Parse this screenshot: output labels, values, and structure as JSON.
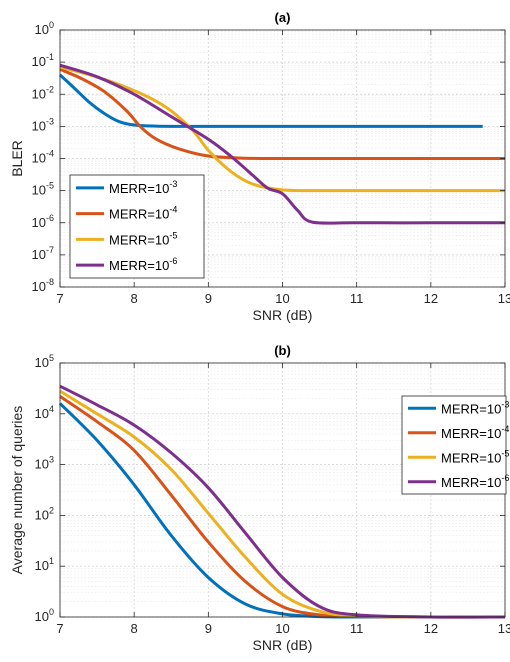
{
  "chart_data": [
    {
      "id": "a",
      "type": "line",
      "title": "(a)",
      "xlabel": "SNR (dB)",
      "ylabel": "BLER",
      "xlim": [
        7,
        13
      ],
      "ylim_exp": [
        -8,
        0
      ],
      "yscale": "log",
      "grid": true,
      "legend_position": "bottom-left",
      "x_ticks": [
        "7",
        "8",
        "9",
        "10",
        "11",
        "12",
        "13"
      ],
      "series": [
        {
          "name": "MERR=10^-3",
          "label_base": "MERR=10",
          "label_exp": "-3",
          "color": "#0072BD",
          "x": [
            7,
            7.2,
            7.4,
            7.6,
            7.8,
            8.0,
            8.3,
            8.6,
            9.0,
            10,
            11,
            12,
            12.7
          ],
          "y": [
            0.04,
            0.015,
            0.0055,
            0.0025,
            0.0014,
            0.0011,
            0.00102,
            0.001,
            0.001,
            0.001,
            0.001,
            0.001,
            0.001
          ]
        },
        {
          "name": "MERR=10^-4",
          "label_base": "MERR=10",
          "label_exp": "-4",
          "color": "#D95319",
          "x": [
            7,
            7.3,
            7.6,
            7.9,
            8.1,
            8.3,
            8.6,
            9.0,
            9.5,
            10,
            11,
            12,
            13
          ],
          "y": [
            0.06,
            0.03,
            0.012,
            0.003,
            0.0009,
            0.0004,
            0.0002,
            0.00012,
            0.000102,
            0.0001,
            0.0001,
            0.0001,
            0.0001
          ]
        },
        {
          "name": "MERR=10^-5",
          "label_base": "MERR=10",
          "label_exp": "-5",
          "color": "#EDB120",
          "x": [
            7,
            7.4,
            7.8,
            8.2,
            8.5,
            8.8,
            9.0,
            9.3,
            9.6,
            10,
            10.5,
            11,
            12,
            13
          ],
          "y": [
            0.07,
            0.04,
            0.02,
            0.008,
            0.003,
            0.0007,
            0.00018,
            4e-05,
            1.6e-05,
            1.05e-05,
            1e-05,
            1e-05,
            1e-05,
            1e-05
          ]
        },
        {
          "name": "MERR=10^-6",
          "label_base": "MERR=10",
          "label_exp": "-6",
          "color": "#7E2F8E",
          "x": [
            7,
            7.5,
            8.0,
            8.5,
            9.0,
            9.3,
            9.6,
            9.8,
            10.0,
            10.2,
            10.4,
            11,
            12,
            13
          ],
          "y": [
            0.08,
            0.035,
            0.01,
            0.002,
            0.0004,
            0.00012,
            3e-05,
            1.2e-05,
            8e-06,
            2.5e-06,
            1.05e-06,
            1e-06,
            1e-06,
            1e-06
          ]
        }
      ]
    },
    {
      "id": "b",
      "type": "line",
      "title": "(b)",
      "xlabel": "SNR (dB)",
      "ylabel": "Average number of queries",
      "xlim": [
        7,
        13
      ],
      "ylim_exp": [
        0,
        5
      ],
      "yscale": "log",
      "grid": true,
      "legend_position": "top-right",
      "x_ticks": [
        "7",
        "8",
        "9",
        "10",
        "11",
        "12",
        "13"
      ],
      "series": [
        {
          "name": "MERR=10^-3",
          "label_base": "MERR=10",
          "label_exp": "-3",
          "color": "#0072BD",
          "x": [
            7,
            7.5,
            8,
            8.5,
            9,
            9.5,
            10,
            10.5,
            11,
            12,
            13
          ],
          "y": [
            16000,
            3000,
            400,
            40,
            6,
            1.8,
            1.15,
            1.02,
            1,
            1,
            1
          ]
        },
        {
          "name": "MERR=10^-4",
          "label_base": "MERR=10",
          "label_exp": "-4",
          "color": "#D95319",
          "x": [
            7,
            7.5,
            8,
            8.5,
            9,
            9.5,
            10,
            10.5,
            11,
            12,
            13
          ],
          "y": [
            22000,
            7000,
            1900,
            250,
            30,
            5,
            1.6,
            1.1,
            1.02,
            1,
            1
          ]
        },
        {
          "name": "MERR=10^-5",
          "label_base": "MERR=10",
          "label_exp": "-5",
          "color": "#EDB120",
          "x": [
            7,
            7.5,
            8,
            8.5,
            9,
            9.5,
            10,
            10.5,
            11,
            12,
            13
          ],
          "y": [
            28000,
            10000,
            3500,
            800,
            110,
            15,
            2.8,
            1.3,
            1.05,
            1,
            1
          ]
        },
        {
          "name": "MERR=10^-6",
          "label_base": "MERR=10",
          "label_exp": "-6",
          "color": "#7E2F8E",
          "x": [
            7,
            7.5,
            8,
            8.5,
            9,
            9.5,
            10,
            10.5,
            11,
            12,
            13
          ],
          "y": [
            35000,
            15000,
            6000,
            1700,
            350,
            45,
            6,
            1.6,
            1.1,
            1,
            1
          ]
        }
      ]
    }
  ]
}
